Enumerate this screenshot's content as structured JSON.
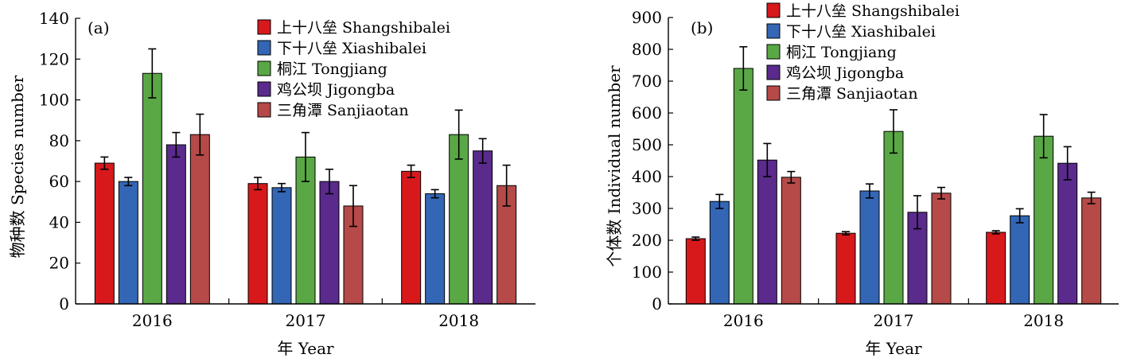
{
  "chart_data": [
    {
      "type": "bar",
      "panel_label": "(a)",
      "title": "",
      "xlabel": "年 Year",
      "ylabel": "物种数 Species number",
      "ylim": [
        0,
        140
      ],
      "yticks": [
        "0",
        "20",
        "40",
        "60",
        "80",
        "100",
        "120",
        "140"
      ],
      "categories": [
        "2016",
        "2017",
        "2018"
      ],
      "legend_position": "top-right",
      "grid": false,
      "series": [
        {
          "name": "上十八垒 Shangshibalei",
          "color": "#d7191c",
          "values": [
            69,
            59,
            65
          ],
          "errors": [
            3,
            3,
            3
          ]
        },
        {
          "name": "下十八垒 Xiashibalei",
          "color": "#3366b4",
          "values": [
            60,
            57,
            54
          ],
          "errors": [
            2,
            2,
            2
          ]
        },
        {
          "name": "桐江 Tongjiang",
          "color": "#59a845",
          "values": [
            113,
            72,
            83
          ],
          "errors": [
            12,
            12,
            12
          ]
        },
        {
          "name": "鸡公坝 Jigongba",
          "color": "#5a2a8c",
          "values": [
            78,
            60,
            75
          ],
          "errors": [
            6,
            6,
            6
          ]
        },
        {
          "name": "三角潭 Sanjiaotan",
          "color": "#b54a48",
          "values": [
            83,
            48,
            58
          ],
          "errors": [
            10,
            10,
            10
          ]
        }
      ]
    },
    {
      "type": "bar",
      "panel_label": "(b)",
      "title": "",
      "xlabel": "年 Year",
      "ylabel": "个体数 Individual number",
      "ylim": [
        0,
        900
      ],
      "yticks": [
        "0",
        "100",
        "200",
        "300",
        "400",
        "500",
        "600",
        "700",
        "800",
        "900"
      ],
      "categories": [
        "2016",
        "2017",
        "2018"
      ],
      "legend_position": "top-center",
      "grid": false,
      "series": [
        {
          "name": "上十八垒 Shangshibalei",
          "color": "#d7191c",
          "values": [
            205,
            222,
            225
          ],
          "errors": [
            5,
            5,
            5
          ]
        },
        {
          "name": "下十八垒 Xiashibalei",
          "color": "#3366b4",
          "values": [
            322,
            355,
            277
          ],
          "errors": [
            22,
            22,
            22
          ]
        },
        {
          "name": "桐江 Tongjiang",
          "color": "#59a845",
          "values": [
            740,
            542,
            527
          ],
          "errors": [
            68,
            68,
            68
          ]
        },
        {
          "name": "鸡公坝 Jigongba",
          "color": "#5a2a8c",
          "values": [
            452,
            288,
            442
          ],
          "errors": [
            52,
            52,
            52
          ]
        },
        {
          "name": "三角潭 Sanjiaotan",
          "color": "#b54a48",
          "values": [
            398,
            348,
            333
          ],
          "errors": [
            18,
            18,
            18
          ]
        }
      ]
    }
  ]
}
